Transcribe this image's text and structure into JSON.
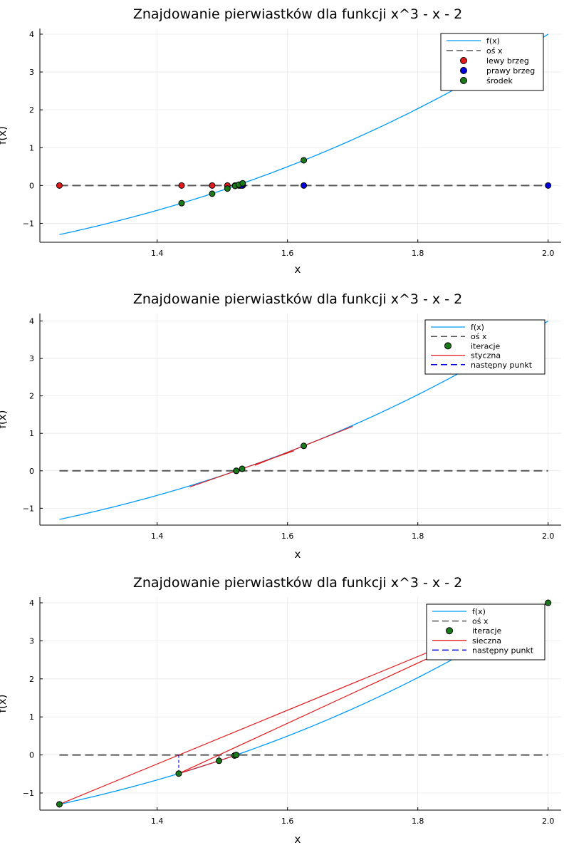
{
  "chart_data": [
    {
      "type": "line",
      "title": "Znajdowanie pierwiastków dla funkcji x^3 - x - 2",
      "xlabel": "x",
      "ylabel": "f(x)",
      "xlim": [
        1.22,
        2.02
      ],
      "ylim": [
        -1.5,
        4.15
      ],
      "xticks": [
        1.4,
        1.6,
        1.8,
        2.0
      ],
      "xtick_labels": [
        "1.4",
        "1.6",
        "1.8",
        "2.0"
      ],
      "yticks": [
        -1,
        0,
        1,
        2,
        3,
        4
      ],
      "ytick_labels": [
        "−1",
        "0",
        "1",
        "2",
        "3",
        "4"
      ],
      "grid": true,
      "legend_position": "top-right",
      "function": {
        "name": "f(x)",
        "x_range": [
          1.25,
          2.0
        ],
        "color": "#009AFA"
      },
      "axis_line": {
        "name": "oś x",
        "y": 0,
        "color": "#555555"
      },
      "series": [
        {
          "name": "lewy brzeg",
          "color": "#E31A1C",
          "x": [
            1.25,
            1.4375,
            1.484375,
            1.5078125,
            1.51953125,
            1.525390625
          ],
          "y": [
            0,
            0,
            0,
            0,
            0,
            0
          ]
        },
        {
          "name": "prawy brzeg",
          "color": "#0000E0",
          "x": [
            2.0,
            1.625,
            1.53125,
            1.52734375,
            1.529296875
          ],
          "y": [
            0,
            0,
            0,
            0,
            0
          ]
        },
        {
          "name": "środek",
          "color": "#1A7A1A",
          "x": [
            1.625,
            1.4375,
            1.484375,
            1.5078125,
            1.51953125,
            1.525390625,
            1.53125
          ],
          "y": [
            0.666,
            -0.467,
            -0.217,
            -0.08,
            -0.011,
            0.024,
            0.059
          ]
        }
      ]
    },
    {
      "type": "line",
      "title": "Znajdowanie pierwiastków dla funkcji x^3 - x - 2",
      "xlabel": "x",
      "ylabel": "f(x)",
      "xlim": [
        1.22,
        2.02
      ],
      "ylim": [
        -1.45,
        4.2
      ],
      "xticks": [
        1.4,
        1.6,
        1.8,
        2.0
      ],
      "xtick_labels": [
        "1.4",
        "1.6",
        "1.8",
        "2.0"
      ],
      "yticks": [
        -1,
        0,
        1,
        2,
        3,
        4
      ],
      "ytick_labels": [
        "−1",
        "0",
        "1",
        "2",
        "3",
        "4"
      ],
      "grid": true,
      "legend_position": "top-right",
      "function": {
        "name": "f(x)",
        "x_range": [
          1.25,
          2.0
        ],
        "color": "#009AFA"
      },
      "axis_line": {
        "name": "oś x",
        "y": 0,
        "color": "#555555"
      },
      "series": [
        {
          "name": "iteracje",
          "color": "#1A7A1A",
          "x": [
            1.625,
            1.5304,
            1.5214,
            1.5214
          ],
          "y": [
            0.666,
            0.054,
            0.0004,
            0.0
          ]
        },
        {
          "name": "styczna",
          "color": "#E31A1C",
          "segments": [
            [
              1.55,
              1.7
            ],
            [
              1.45,
              1.61
            ]
          ]
        },
        {
          "name": "następny punkt",
          "color": "#0000E0",
          "segments": []
        }
      ]
    },
    {
      "type": "line",
      "title": "Znajdowanie pierwiastków dla funkcji x^3 - x - 2",
      "xlabel": "x",
      "ylabel": "f(x)",
      "xlim": [
        1.22,
        2.02
      ],
      "ylim": [
        -1.45,
        4.15
      ],
      "xticks": [
        1.4,
        1.6,
        1.8,
        2.0
      ],
      "xtick_labels": [
        "1.4",
        "1.6",
        "1.8",
        "2.0"
      ],
      "yticks": [
        -1,
        0,
        1,
        2,
        3,
        4
      ],
      "ytick_labels": [
        "−1",
        "0",
        "1",
        "2",
        "3",
        "4"
      ],
      "grid": true,
      "legend_position": "top-right",
      "function": {
        "name": "f(x)",
        "x_range": [
          1.25,
          2.0
        ],
        "color": "#009AFA"
      },
      "axis_line": {
        "name": "oś x",
        "y": 0,
        "color": "#555555"
      },
      "series": [
        {
          "name": "iteracje",
          "color": "#1A7A1A",
          "x": [
            2.0,
            1.25,
            1.4331,
            1.4949,
            1.5187,
            1.5212,
            1.5214
          ],
          "y": [
            4.0,
            -1.297,
            -0.49,
            -0.154,
            -0.015,
            -0.001,
            0.0
          ]
        },
        {
          "name": "sieczna",
          "color": "#E31A1C",
          "segments": [
            [
              2.0,
              1.25
            ],
            [
              2.0,
              1.4331
            ],
            [
              1.4331,
              1.4949
            ],
            [
              1.4949,
              1.5187
            ]
          ]
        },
        {
          "name": "następny punkt",
          "color": "#0000E0",
          "x": [
            1.4331,
            1.4949,
            1.5187
          ]
        }
      ]
    }
  ]
}
